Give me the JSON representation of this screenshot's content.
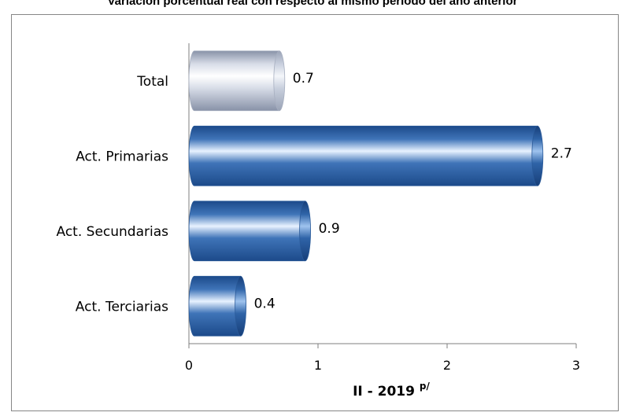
{
  "chart_data": {
    "type": "bar",
    "orientation": "horizontal",
    "title": "Variación porcentual real con respecto al mismo periodo del año anterior",
    "categories": [
      "Total",
      "Act. Primarias",
      "Act. Secundarias",
      "Act. Terciarias"
    ],
    "values": [
      0.7,
      2.7,
      0.9,
      0.4
    ],
    "value_labels": [
      "0.7",
      "2.7",
      "0.9",
      "0.4"
    ],
    "xlabel": "II - 2019",
    "xlabel_superscript": "p/",
    "xlim": [
      0,
      3
    ],
    "xticks": [
      "0",
      "1",
      "2",
      "3"
    ],
    "grid": false,
    "legend": "none",
    "colors": {
      "total_bar": "#d8dde8",
      "sector_bars": "#3f74b8",
      "highlight": "#e8f2ff"
    }
  }
}
